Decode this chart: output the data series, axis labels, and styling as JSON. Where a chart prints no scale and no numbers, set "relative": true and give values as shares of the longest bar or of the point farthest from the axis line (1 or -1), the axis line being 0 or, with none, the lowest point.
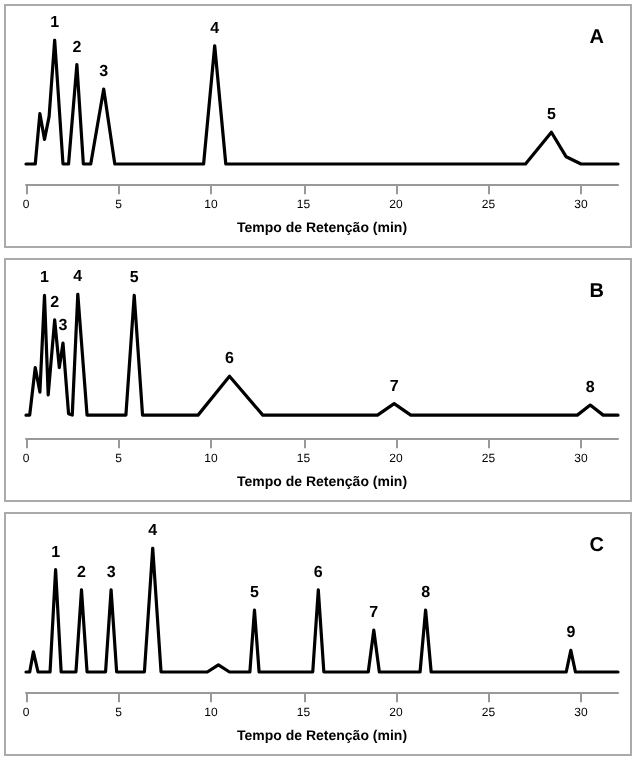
{
  "chart_data": [
    {
      "type": "line",
      "title": "A",
      "xlabel": "Tempo de Retenção (min)",
      "relative": true,
      "xlim": [
        0,
        32
      ],
      "xticks": [
        0,
        5,
        10,
        15,
        20,
        25,
        30
      ],
      "grid": false,
      "marker": "none",
      "line_style": "solid",
      "tick_labels": "x",
      "series": [
        {
          "color": "#000000",
          "x": [
            0,
            0.3,
            0.5,
            0.75,
            1.0,
            1.25,
            1.55,
            2.0,
            2.3,
            2.75,
            3.1,
            3.5,
            4.2,
            4.8,
            9.6,
            10.2,
            10.8,
            27,
            28.4,
            29.2,
            30,
            32
          ],
          "values": [
            0.14,
            0.14,
            0.14,
            0.49,
            0.31,
            0.47,
            1.0,
            0.14,
            0.14,
            0.83,
            0.14,
            0.14,
            0.66,
            0.14,
            0.14,
            0.96,
            0.14,
            0.14,
            0.36,
            0.19,
            0.14,
            0.14
          ]
        }
      ],
      "annotations": [
        {
          "text": "1",
          "x": 1.55,
          "y": 1.0
        },
        {
          "text": "2",
          "x": 2.75,
          "y": 0.83
        },
        {
          "text": "3",
          "x": 4.2,
          "y": 0.66
        },
        {
          "text": "4",
          "x": 10.2,
          "y": 0.96
        },
        {
          "text": "5",
          "x": 28.4,
          "y": 0.36
        }
      ]
    },
    {
      "type": "line",
      "title": "B",
      "xlabel": "Tempo de Retenção (min)",
      "relative": true,
      "xlim": [
        0,
        32
      ],
      "xticks": [
        0,
        5,
        10,
        15,
        20,
        25,
        30
      ],
      "grid": false,
      "marker": "none",
      "line_style": "solid",
      "tick_labels": "x",
      "series": [
        {
          "color": "#000000",
          "x": [
            0,
            0.2,
            0.5,
            0.75,
            1.0,
            1.2,
            1.55,
            1.8,
            2.0,
            2.3,
            2.5,
            2.8,
            3.3,
            5.4,
            5.85,
            6.3,
            9.3,
            11.0,
            12.8,
            19.0,
            19.9,
            20.8,
            29.8,
            30.5,
            31.2,
            32
          ],
          "values": [
            0.16,
            0.16,
            0.49,
            0.32,
            0.99,
            0.3,
            0.82,
            0.49,
            0.66,
            0.17,
            0.16,
            1.0,
            0.16,
            0.16,
            0.99,
            0.16,
            0.16,
            0.43,
            0.16,
            0.16,
            0.24,
            0.16,
            0.16,
            0.23,
            0.16,
            0.16
          ]
        }
      ],
      "annotations": [
        {
          "text": "1",
          "x": 1.0,
          "y": 0.99
        },
        {
          "text": "2",
          "x": 1.55,
          "y": 0.82
        },
        {
          "text": "3",
          "x": 2.0,
          "y": 0.66
        },
        {
          "text": "4",
          "x": 2.8,
          "y": 1.0
        },
        {
          "text": "5",
          "x": 5.85,
          "y": 0.99
        },
        {
          "text": "6",
          "x": 11.0,
          "y": 0.43
        },
        {
          "text": "7",
          "x": 19.9,
          "y": 0.24
        },
        {
          "text": "8",
          "x": 30.5,
          "y": 0.23
        }
      ]
    },
    {
      "type": "line",
      "title": "C",
      "xlabel": "Tempo de Retenção (min)",
      "relative": true,
      "xlim": [
        0,
        32
      ],
      "xticks": [
        0,
        5,
        10,
        15,
        20,
        25,
        30
      ],
      "grid": false,
      "marker": "none",
      "line_style": "solid",
      "tick_labels": "x",
      "series": [
        {
          "color": "#000000",
          "x": [
            0,
            0.2,
            0.4,
            0.65,
            1.3,
            1.6,
            1.9,
            2.7,
            3.0,
            3.3,
            4.3,
            4.6,
            4.9,
            6.4,
            6.85,
            7.3,
            9.8,
            10.4,
            11.0,
            12.1,
            12.35,
            12.6,
            15.5,
            15.8,
            16.1,
            18.5,
            18.8,
            19.1,
            21.3,
            21.6,
            21.9,
            29.2,
            29.45,
            29.7,
            32
          ],
          "values": [
            0.14,
            0.14,
            0.28,
            0.14,
            0.14,
            0.85,
            0.14,
            0.14,
            0.71,
            0.14,
            0.14,
            0.71,
            0.14,
            0.14,
            1.0,
            0.14,
            0.14,
            0.19,
            0.14,
            0.14,
            0.57,
            0.14,
            0.14,
            0.71,
            0.14,
            0.14,
            0.43,
            0.14,
            0.14,
            0.57,
            0.14,
            0.14,
            0.29,
            0.14,
            0.14
          ]
        }
      ],
      "annotations": [
        {
          "text": "1",
          "x": 1.6,
          "y": 0.85
        },
        {
          "text": "2",
          "x": 3.0,
          "y": 0.71
        },
        {
          "text": "3",
          "x": 4.6,
          "y": 0.71
        },
        {
          "text": "4",
          "x": 6.85,
          "y": 1.0
        },
        {
          "text": "5",
          "x": 12.35,
          "y": 0.57
        },
        {
          "text": "6",
          "x": 15.8,
          "y": 0.71
        },
        {
          "text": "7",
          "x": 18.8,
          "y": 0.43
        },
        {
          "text": "8",
          "x": 21.6,
          "y": 0.57
        },
        {
          "text": "9",
          "x": 29.45,
          "y": 0.29
        }
      ]
    }
  ]
}
